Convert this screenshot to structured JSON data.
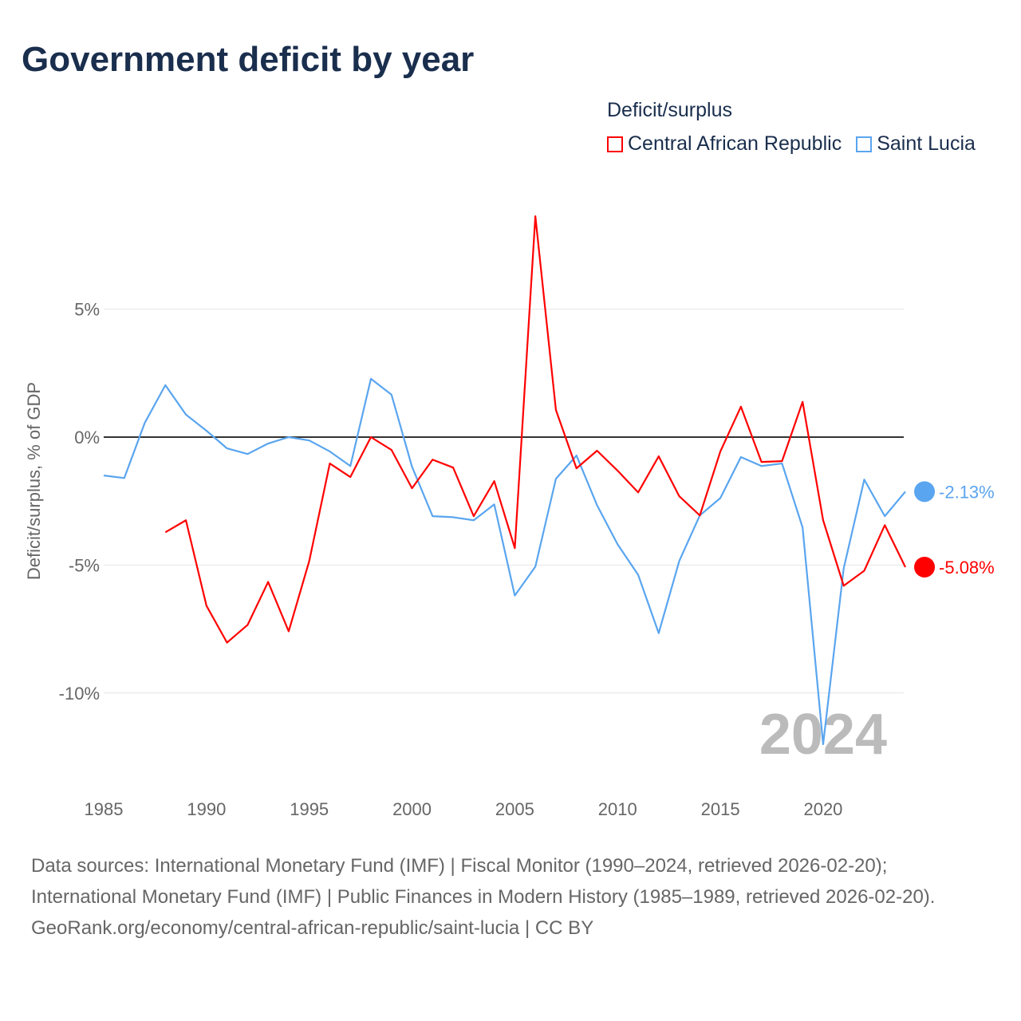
{
  "title": "Government deficit by year",
  "legend": {
    "title": "Deficit/surplus"
  },
  "footer": {
    "sources": "Data sources: International Monetary Fund (IMF) | Fiscal Monitor (1990–2024, retrieved 2026-02-20); International Monetary Fund (IMF) | Public Finances in Modern History (1985–1989, retrieved 2026-02-20).",
    "credit": "GeoRank.org/economy/central-african-republic/saint-lucia | CC BY"
  },
  "chart_data": {
    "type": "line",
    "title": "Government deficit by year",
    "ylabel": "Deficit/surplus, % of GDP",
    "xlim": [
      1985,
      2024
    ],
    "ylim": [
      -13,
      9
    ],
    "xticks": [
      1985,
      1990,
      1995,
      2000,
      2005,
      2010,
      2015,
      2020
    ],
    "yticks": [
      {
        "v": 5,
        "label": "5%"
      },
      {
        "v": 0,
        "label": "0%"
      },
      {
        "v": -5,
        "label": "-5%"
      },
      {
        "v": -10,
        "label": "-10%"
      }
    ],
    "year_label": "2024",
    "series": [
      {
        "name": "Central African Republic",
        "color": "#ff0000",
        "end_label": "-5.08%",
        "x": [
          1988,
          1989,
          1990,
          1991,
          1992,
          1993,
          1994,
          1995,
          1996,
          1997,
          1998,
          1999,
          2000,
          2001,
          2002,
          2003,
          2004,
          2005,
          2006,
          2007,
          2008,
          2009,
          2010,
          2011,
          2012,
          2013,
          2014,
          2015,
          2016,
          2017,
          2018,
          2019,
          2020,
          2021,
          2022,
          2023,
          2024
        ],
        "values": [
          -3.72,
          -3.25,
          -6.59,
          -8.03,
          -7.34,
          -5.66,
          -7.59,
          -4.84,
          -1.03,
          -1.56,
          0,
          -0.5,
          -2.0,
          -0.88,
          -1.19,
          -3.09,
          -1.72,
          -4.34,
          8.63,
          1.06,
          -1.22,
          -0.53,
          -1.31,
          -2.16,
          -0.75,
          -2.31,
          -3.06,
          -0.56,
          1.19,
          -0.97,
          -0.94,
          1.38,
          -3.25,
          -5.81,
          -5.22,
          -3.44,
          -5.08
        ]
      },
      {
        "name": "Saint Lucia",
        "color": "#5aa5ef",
        "end_label": "-2.13%",
        "x": [
          1985,
          1986,
          1987,
          1988,
          1989,
          1990,
          1991,
          1992,
          1993,
          1994,
          1995,
          1996,
          1997,
          1998,
          1999,
          2000,
          2001,
          2002,
          2003,
          2004,
          2005,
          2006,
          2007,
          2008,
          2009,
          2010,
          2011,
          2012,
          2013,
          2014,
          2015,
          2016,
          2017,
          2018,
          2019,
          2020,
          2021,
          2022,
          2023,
          2024
        ],
        "values": [
          -1.5,
          -1.6,
          0.56,
          2.03,
          0.88,
          0.25,
          -0.44,
          -0.66,
          -0.25,
          0,
          -0.13,
          -0.56,
          -1.13,
          2.28,
          1.66,
          -1.16,
          -3.09,
          -3.13,
          -3.25,
          -2.63,
          -6.19,
          -5.06,
          -1.63,
          -0.72,
          -2.66,
          -4.19,
          -5.38,
          -7.66,
          -4.84,
          -3.06,
          -2.38,
          -0.78,
          -1.13,
          -1.03,
          -3.53,
          -12.0,
          -5.13,
          -1.66,
          -3.09,
          -2.13
        ]
      }
    ]
  }
}
